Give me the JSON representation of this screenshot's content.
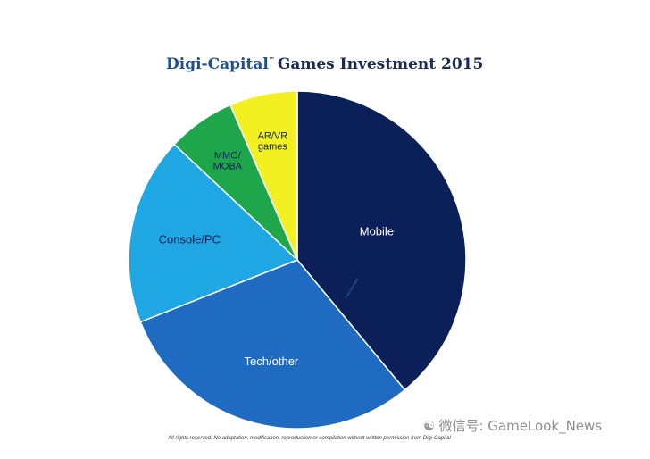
{
  "title": {
    "brand": "Digi-Capital",
    "trademark": "™",
    "text": "Games Investment 2015"
  },
  "chart_data": {
    "type": "pie",
    "title": "Digi-Capital Games Investment 2015",
    "start_angle_deg": 0,
    "direction": "clockwise",
    "slices": [
      {
        "label": "Mobile",
        "value": 39,
        "color": "#0b1f59",
        "text_color": "#ffffff"
      },
      {
        "label": "Tech/other",
        "value": 30,
        "color": "#1e6bc1",
        "text_color": "#ffffff"
      },
      {
        "label": "Console/PC",
        "value": 18,
        "color": "#1ea7e2",
        "text_color": "#0b1f59"
      },
      {
        "label": "MMO/\nMOBA",
        "value": 6.5,
        "color": "#1fa64a",
        "text_color": "#0b1f59"
      },
      {
        "label": "AR/VR\ngames",
        "value": 6.5,
        "color": "#f3f022",
        "text_color": "#0b1f59"
      }
    ],
    "inner_copyright": "© 2015 Digi-Capital"
  },
  "footer": {
    "copyright": "All rights reserved. No adaptation, modification, reproduction or compilation without written permission from Digi-Capital",
    "watermark_icon": "wechat-icon",
    "watermark": "微信号: GameLook_News"
  }
}
